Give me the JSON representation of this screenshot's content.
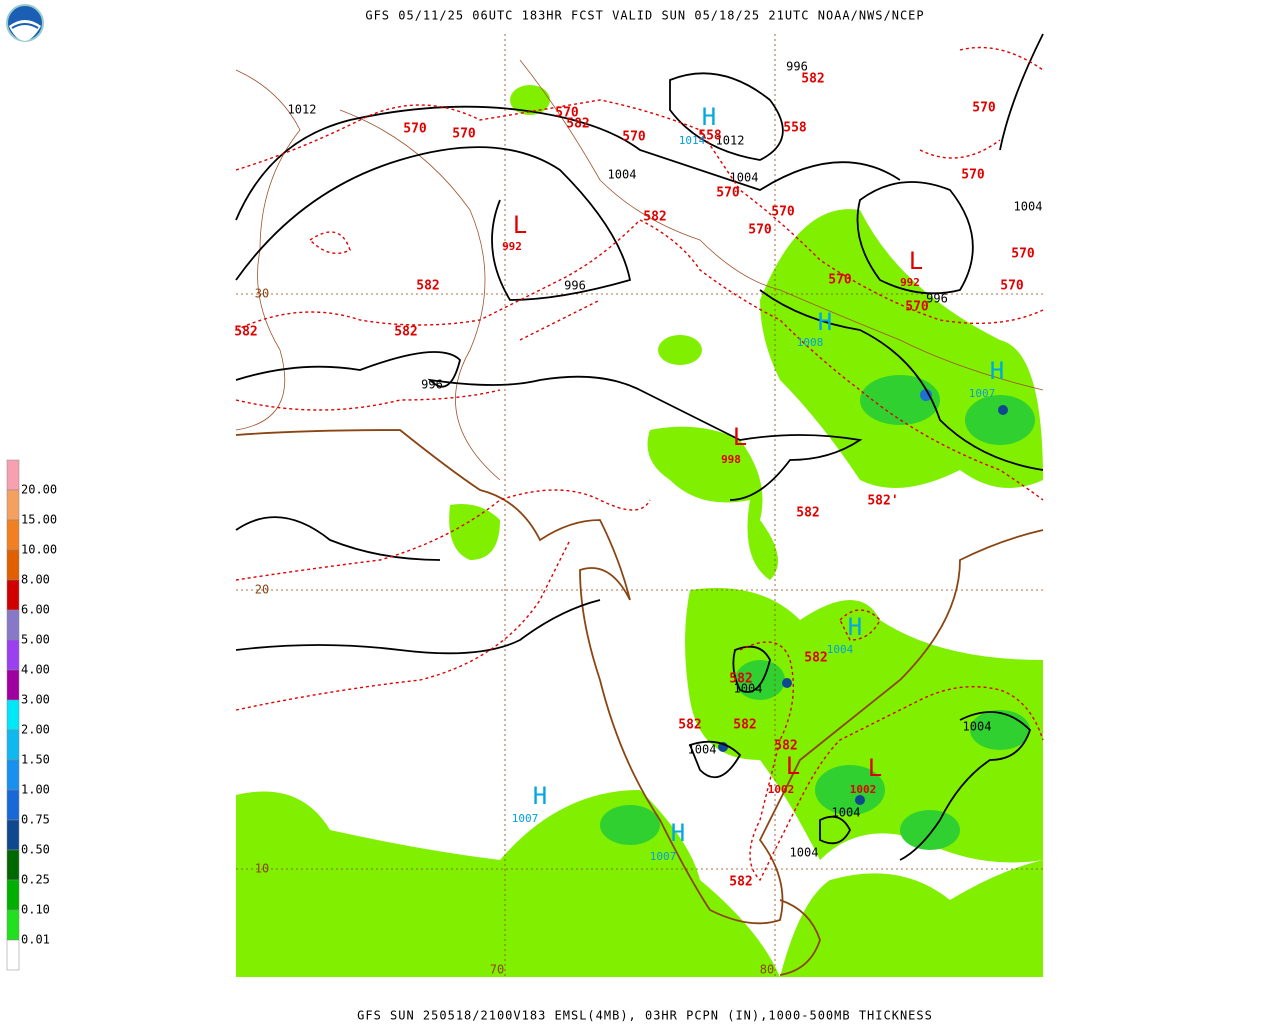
{
  "header": {
    "title": "GFS 05/11/25 06UTC 183HR FCST VALID SUN 05/18/25 21UTC NOAA/NWS/NCEP"
  },
  "footer": {
    "caption": "GFS SUN 250518/2100V183 EMSL(4MB), 03HR PCPN (IN),1000-500MB THICKNESS"
  },
  "legend": {
    "labels": [
      "20.00",
      "15.00",
      "10.00",
      "8.00",
      "6.00",
      "5.00",
      "4.00",
      "3.00",
      "2.00",
      "1.50",
      "1.00",
      "0.75",
      "0.50",
      "0.25",
      "0.10",
      "0.01"
    ],
    "colors": [
      "#f8a0b0",
      "#f4a060",
      "#f08020",
      "#e06000",
      "#d00000",
      "#8878c8",
      "#9a40f0",
      "#a000a0",
      "#00e8f8",
      "#10b8f0",
      "#1890f0",
      "#1868d8",
      "#104890",
      "#006800",
      "#00b000",
      "#20e020",
      "#ffffff"
    ]
  },
  "map": {
    "lat_labels": [
      "30",
      "20",
      "10"
    ],
    "lon_labels": [
      "70",
      "80"
    ],
    "isobar_labels": [
      "1012",
      "996",
      "1012",
      "1004",
      "1004",
      "1004",
      "996",
      "996",
      "996",
      "1004",
      "1004",
      "1004",
      "1004",
      "1004"
    ],
    "thickness_labels": [
      "570",
      "570",
      "570",
      "570",
      "558",
      "558",
      "582",
      "570",
      "570",
      "570",
      "570",
      "570",
      "570",
      "570",
      "570",
      "570",
      "582",
      "582",
      "582",
      "582",
      "582'",
      "582",
      "582",
      "582",
      "582",
      "582",
      "582",
      "582",
      "582"
    ],
    "centers": [
      {
        "symbol": "H",
        "value": "1014"
      },
      {
        "symbol": "L",
        "value": "992"
      },
      {
        "symbol": "L",
        "value": "992"
      },
      {
        "symbol": "H",
        "value": "1008"
      },
      {
        "symbol": "H",
        "value": "1007"
      },
      {
        "symbol": "L",
        "value": "998"
      },
      {
        "symbol": "H",
        "value": "1004"
      },
      {
        "symbol": "L",
        "value": "1002"
      },
      {
        "symbol": "L",
        "value": "1002"
      },
      {
        "symbol": "H",
        "value": "1007"
      },
      {
        "symbol": "H",
        "value": "1007"
      }
    ]
  }
}
